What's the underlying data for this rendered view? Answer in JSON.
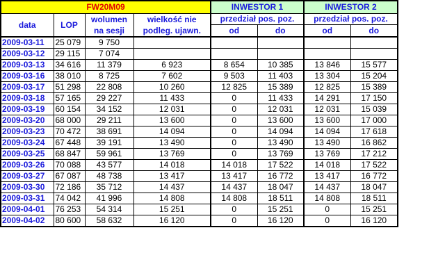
{
  "header": {
    "contract": "FW20M09",
    "investor1": "INWESTOR 1",
    "investor2": "INWESTOR 2",
    "col_date": "data",
    "col_lop": "LOP",
    "col_volume_1": "wolumen",
    "col_volume_2": "na sesji",
    "col_undisclosed_1": "wielkość nie",
    "col_undisclosed_2": "podleg. ujawn.",
    "range_label": "przedział pos. poz.",
    "from": "od",
    "to": "do"
  },
  "colors": {
    "contract_bg": "#ffff00",
    "contract_text": "#e00000",
    "investor_bg": "#ccffcc",
    "header_text": "#1a1adc"
  },
  "rows": [
    [
      "2009-03-11",
      "25 079",
      "9 750",
      "",
      "",
      "",
      "",
      ""
    ],
    [
      "2009-03-12",
      "29 115",
      "7 074",
      "",
      "",
      "",
      "",
      ""
    ],
    [
      "2009-03-13",
      "34 616",
      "11 379",
      "6 923",
      "8 654",
      "10 385",
      "13 846",
      "15 577"
    ],
    [
      "2009-03-16",
      "38 010",
      "8 725",
      "7 602",
      "9 503",
      "11 403",
      "13 304",
      "15 204"
    ],
    [
      "2009-03-17",
      "51 298",
      "22 808",
      "10 260",
      "12 825",
      "15 389",
      "12 825",
      "15 389"
    ],
    [
      "2009-03-18",
      "57 165",
      "29 227",
      "11 433",
      "0",
      "11 433",
      "14 291",
      "17 150"
    ],
    [
      "2009-03-19",
      "60 154",
      "34 152",
      "12 031",
      "0",
      "12 031",
      "12 031",
      "15 039"
    ],
    [
      "2009-03-20",
      "68 000",
      "29 211",
      "13 600",
      "0",
      "13 600",
      "13 600",
      "17 000"
    ],
    [
      "2009-03-23",
      "70 472",
      "38 691",
      "14 094",
      "0",
      "14 094",
      "14 094",
      "17 618"
    ],
    [
      "2009-03-24",
      "67 448",
      "39 191",
      "13 490",
      "0",
      "13 490",
      "13 490",
      "16 862"
    ],
    [
      "2009-03-25",
      "68 847",
      "59 961",
      "13 769",
      "0",
      "13 769",
      "13 769",
      "17 212"
    ],
    [
      "2009-03-26",
      "70 088",
      "43 577",
      "14 018",
      "14 018",
      "17 522",
      "14 018",
      "17 522"
    ],
    [
      "2009-03-27",
      "67 087",
      "48 738",
      "13 417",
      "13 417",
      "16 772",
      "13 417",
      "16 772"
    ],
    [
      "2009-03-30",
      "72 186",
      "35 712",
      "14 437",
      "14 437",
      "18 047",
      "14 437",
      "18 047"
    ],
    [
      "2009-03-31",
      "74 042",
      "41 996",
      "14 808",
      "14 808",
      "18 511",
      "14 808",
      "18 511"
    ],
    [
      "2009-04-01",
      "76 253",
      "54 314",
      "15 251",
      "0",
      "15 251",
      "0",
      "15 251"
    ],
    [
      "2009-04-02",
      "80 600",
      "58 632",
      "16 120",
      "0",
      "16 120",
      "0",
      "16 120"
    ]
  ]
}
